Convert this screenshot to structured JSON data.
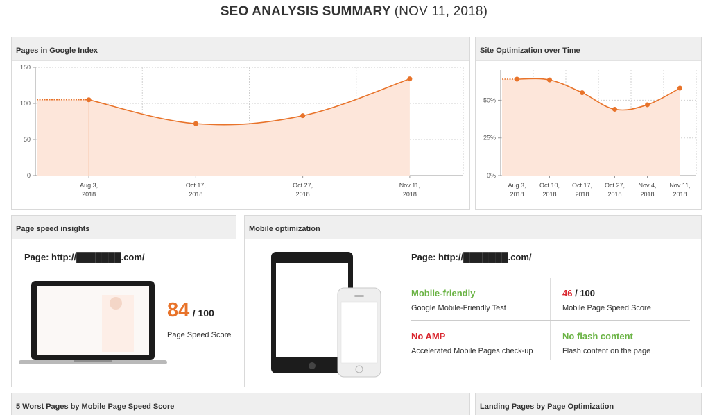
{
  "header": {
    "title": "SEO ANALYSIS SUMMARY",
    "date": "(NOV 11, 2018)"
  },
  "panels": {
    "google_index": {
      "title": "Pages in Google Index"
    },
    "site_optimization": {
      "title": "Site Optimization over Time"
    },
    "page_speed": {
      "title": "Page speed insights",
      "page": "Page: http://███████.com/",
      "score": "84",
      "score_max": "/ 100",
      "score_label": "Page Speed Score"
    },
    "mobile": {
      "title": "Mobile optimization",
      "page": "Page: http://███████.com/",
      "mobile_friendly": {
        "title": "Mobile-friendly",
        "sub": "Google Mobile-Friendly Test"
      },
      "speed": {
        "score": "46",
        "max": "/ 100",
        "sub": "Mobile Page Speed Score"
      },
      "amp": {
        "title": "No AMP",
        "sub": "Accelerated Mobile Pages check-up"
      },
      "flash": {
        "title": "No flash content",
        "sub": "Flash content on the page"
      }
    },
    "worst_pages": {
      "title": "5 Worst Pages by Mobile Page Speed Score"
    },
    "landing_pages": {
      "title": "Landing Pages by Page Optimization"
    }
  },
  "colors": {
    "accent": "#e8732a",
    "fill": "#fde6da",
    "green": "#6ab344",
    "red": "#d9262e"
  },
  "chart_data": [
    {
      "type": "area",
      "title": "Pages in Google Index",
      "categories": [
        "Aug 3,\n2018",
        "Oct 17,\n2018",
        "Oct 27,\n2018",
        "Nov 11,\n2018"
      ],
      "values": [
        105,
        72,
        83,
        134
      ],
      "ylim": [
        0,
        150
      ],
      "yticks": [
        0,
        50,
        100,
        150
      ],
      "ytick_labels": [
        "0",
        "50",
        "100",
        "150"
      ],
      "grid": true
    },
    {
      "type": "area",
      "title": "Site Optimization over Time",
      "categories": [
        "Aug 3,\n2018",
        "Oct 10,\n2018",
        "Oct 17,\n2018",
        "Oct 27,\n2018",
        "Nov 4,\n2018",
        "Nov 11,\n2018"
      ],
      "values": [
        64,
        63.5,
        55,
        44,
        47,
        58
      ],
      "ylim": [
        0,
        70
      ],
      "yticks": [
        0,
        25,
        50
      ],
      "ytick_labels": [
        "0%",
        "25%",
        "50%"
      ],
      "grid": true
    }
  ]
}
